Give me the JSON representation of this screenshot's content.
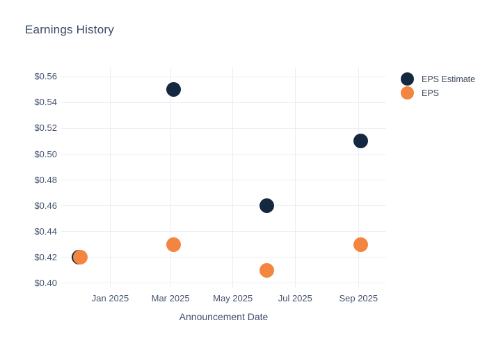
{
  "chart_data": {
    "type": "scatter",
    "title": "Earnings History",
    "xlabel": "Announcement Date",
    "ylabel": "",
    "grid": true,
    "legend_position": "right-top",
    "colors": {
      "navy": "#142840",
      "orange": "#f4853f",
      "gridline": "#e9eef6",
      "title_text": "#394b63",
      "tick_text": "#44536d"
    },
    "y_range": [
      0.3967,
      0.5682
    ],
    "y_ticks": [
      {
        "label": "$0.40",
        "value": 0.4
      },
      {
        "label": "$0.42",
        "value": 0.42
      },
      {
        "label": "$0.44",
        "value": 0.44
      },
      {
        "label": "$0.46",
        "value": 0.46
      },
      {
        "label": "$0.48",
        "value": 0.48
      },
      {
        "label": "$0.50",
        "value": 0.5
      },
      {
        "label": "$0.52",
        "value": 0.52
      },
      {
        "label": "$0.54",
        "value": 0.54
      },
      {
        "label": "$0.56",
        "value": 0.56
      }
    ],
    "x_range": [
      "2024-11-14",
      "2025-09-28"
    ],
    "x_ticks": [
      {
        "label": "Jan 2025",
        "date": "2025-01-01"
      },
      {
        "label": "Mar 2025",
        "date": "2025-03-01"
      },
      {
        "label": "May 2025",
        "date": "2025-05-01"
      },
      {
        "label": "Jul 2025",
        "date": "2025-07-01"
      },
      {
        "label": "Sep 2025",
        "date": "2025-09-01"
      }
    ],
    "series": [
      {
        "name": "EPS Estimate",
        "color": "navy",
        "points": [
          {
            "date": "2024-12-01",
            "value": 0.42
          },
          {
            "date": "2025-03-04",
            "value": 0.55
          },
          {
            "date": "2025-06-03",
            "value": 0.46
          },
          {
            "date": "2025-09-03",
            "value": 0.51
          }
        ]
      },
      {
        "name": "EPS",
        "color": "orange",
        "points": [
          {
            "date": "2024-12-03",
            "value": 0.42
          },
          {
            "date": "2025-03-04",
            "value": 0.43
          },
          {
            "date": "2025-06-03",
            "value": 0.41
          },
          {
            "date": "2025-09-03",
            "value": 0.43
          }
        ]
      }
    ]
  }
}
